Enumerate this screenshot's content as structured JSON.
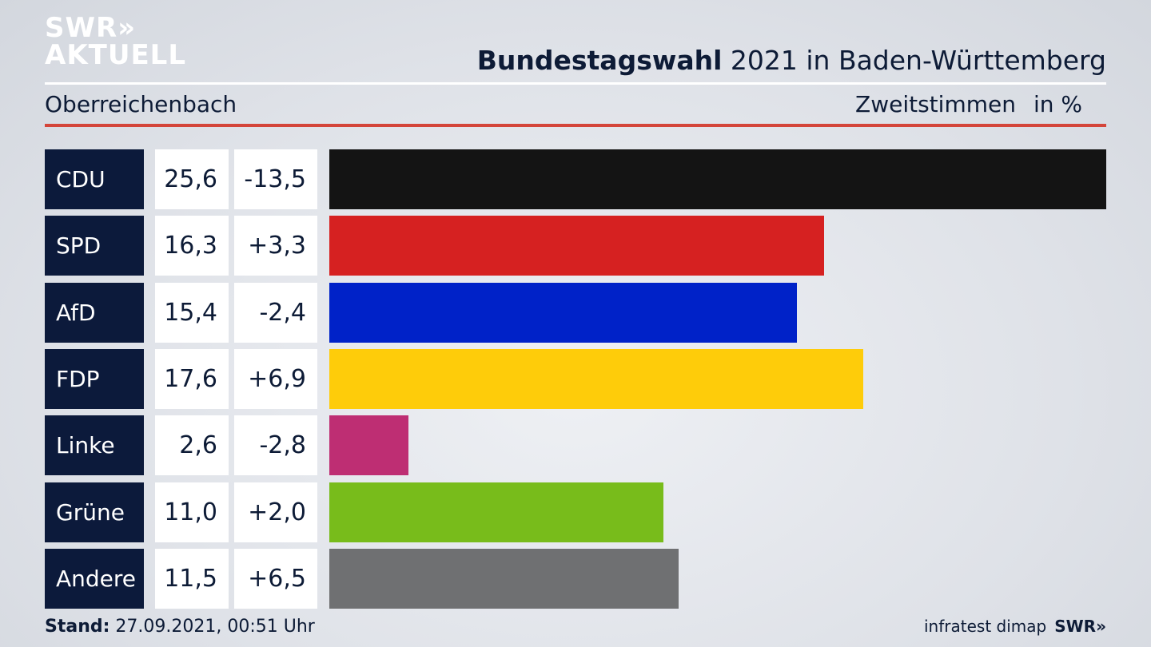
{
  "logo": {
    "line1": "SWR»",
    "line2": "AKTUELL"
  },
  "header": {
    "title_bold": "Bundestagswahl",
    "title_rest": " 2021 in Baden-Württemberg",
    "subtitle": "Oberreichenbach",
    "vote_type": "Zweitstimmen",
    "unit": "in %"
  },
  "chart_data": {
    "type": "bar",
    "orientation": "horizontal",
    "categories": [
      "CDU",
      "SPD",
      "AfD",
      "FDP",
      "Linke",
      "Grüne",
      "Andere"
    ],
    "values": [
      25.6,
      16.3,
      15.4,
      17.6,
      2.6,
      11.0,
      11.5
    ],
    "value_labels": [
      "25,6",
      "16,3",
      "15,4",
      "17,6",
      "2,6",
      "11,0",
      "11,5"
    ],
    "change": [
      -13.5,
      3.3,
      -2.4,
      6.9,
      -2.8,
      2.0,
      6.5
    ],
    "change_labels": [
      "-13,5",
      "+3,3",
      "-2,4",
      "+6,9",
      "-2,8",
      "+2,0",
      "+6,5"
    ],
    "colors": [
      "#141414",
      "#d62121",
      "#0022c8",
      "#fecc0a",
      "#be2e73",
      "#78bc1b",
      "#6f7072"
    ],
    "xlim": [
      0,
      25.6
    ]
  },
  "footer": {
    "stand_label": "Stand:",
    "stand_value": " 27.09.2021, 00:51 Uhr",
    "source": "infratest dimap",
    "brand": "SWR»"
  }
}
